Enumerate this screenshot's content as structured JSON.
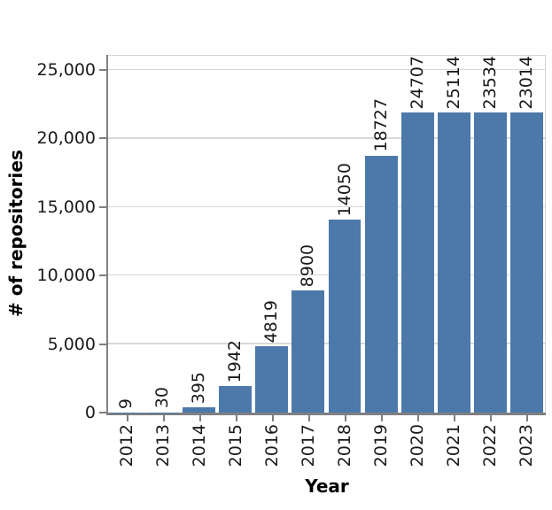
{
  "chart_data": {
    "type": "bar",
    "title": "",
    "xlabel": "Year",
    "ylabel": "# of repositories",
    "categories": [
      "2012",
      "2013",
      "2014",
      "2015",
      "2016",
      "2017",
      "2018",
      "2019",
      "2020",
      "2021",
      "2022",
      "2023"
    ],
    "values": [
      9,
      30,
      395,
      1942,
      4819,
      8900,
      14050,
      18727,
      24707,
      25114,
      23534,
      23014
    ],
    "bar_labels": [
      "9",
      "30",
      "395",
      "1942",
      "4819",
      "8900",
      "14050",
      "18727",
      "24707",
      "25114",
      "23534",
      "23014"
    ],
    "bar_label_rotation_deg": 90,
    "x_tick_rotation_deg": 90,
    "y_ticks": [
      {
        "value": 0,
        "label": "0"
      },
      {
        "value": 5000,
        "label": "5,000"
      },
      {
        "value": 10000,
        "label": "10,000"
      },
      {
        "value": 15000,
        "label": "15,000"
      },
      {
        "value": 20000,
        "label": "20,000"
      },
      {
        "value": 25000,
        "label": "25,000"
      }
    ],
    "ylim": [
      0,
      26000
    ],
    "grid": true,
    "legend_position": "none",
    "bar_color": "#4d79aa",
    "gridline_color": "#d9d9d9",
    "spine_color_dark": "#808080",
    "spine_color_light": "#d4d4d4",
    "text_color": "#1a1a1a"
  }
}
